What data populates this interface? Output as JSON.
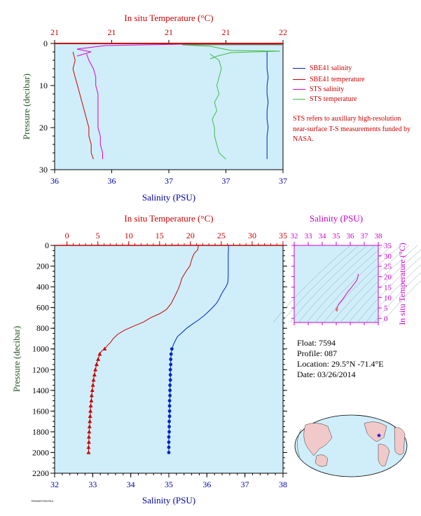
{
  "chart_data": [
    {
      "type": "line",
      "panel": "near-surface",
      "top_axis_label": "In situ Temperature (°C)",
      "top_tick_labels": [
        "21",
        "21",
        "21",
        "21",
        "22"
      ],
      "bottom_axis_label": "Salinity (PSU)",
      "bottom_tick_labels": [
        "36",
        "36",
        "37",
        "37",
        "37"
      ],
      "ylabel": "Pressure (decibar)",
      "y_tick_labels": [
        "0",
        "10",
        "20",
        "30"
      ],
      "ylim": [
        0,
        30
      ],
      "series": [
        {
          "name": "SBE41 salinity",
          "color": "#0022cc",
          "points": [
            [
              36.93,
              2
            ],
            [
              36.93,
              4
            ],
            [
              36.93,
              6
            ],
            [
              36.935,
              8
            ],
            [
              36.93,
              10
            ],
            [
              36.93,
              12
            ],
            [
              36.935,
              14
            ],
            [
              36.93,
              16
            ],
            [
              36.93,
              18
            ],
            [
              36.935,
              20
            ],
            [
              36.93,
              22
            ],
            [
              36.93,
              24
            ],
            [
              36.93,
              26
            ],
            [
              36.93,
              27.5
            ]
          ]
        },
        {
          "name": "SBE41 temperature",
          "color": "#cc0000",
          "points": [
            [
              36.08,
              2
            ],
            [
              36.09,
              4
            ],
            [
              36.08,
              6
            ],
            [
              36.09,
              8
            ],
            [
              36.1,
              10
            ],
            [
              36.11,
              12
            ],
            [
              36.12,
              14
            ],
            [
              36.13,
              16
            ],
            [
              36.14,
              18
            ],
            [
              36.15,
              20
            ],
            [
              36.15,
              22
            ],
            [
              36.16,
              24
            ],
            [
              36.16,
              26
            ],
            [
              36.17,
              27.5
            ]
          ]
        },
        {
          "name": "STS salinity",
          "color": "#dd00cc",
          "points": [
            [
              36.14,
              2.5
            ],
            [
              36.15,
              4
            ],
            [
              36.17,
              6
            ],
            [
              36.18,
              8
            ],
            [
              36.18,
              10
            ],
            [
              36.19,
              12
            ],
            [
              36.19,
              14
            ],
            [
              36.19,
              16
            ],
            [
              36.19,
              18
            ],
            [
              36.19,
              20
            ],
            [
              36.2,
              22
            ],
            [
              36.2,
              24
            ],
            [
              36.21,
              26
            ],
            [
              36.21,
              27.5
            ]
          ]
        },
        {
          "name": "STS temperature",
          "color": "#44bb44",
          "points": [
            [
              36.68,
              2.5
            ],
            [
              36.72,
              4
            ],
            [
              36.73,
              6
            ],
            [
              36.72,
              8
            ],
            [
              36.71,
              10
            ],
            [
              36.72,
              12
            ],
            [
              36.7,
              14
            ],
            [
              36.71,
              16
            ],
            [
              36.69,
              18
            ],
            [
              36.7,
              20
            ],
            [
              36.7,
              22
            ],
            [
              36.71,
              24
            ],
            [
              36.72,
              26
            ],
            [
              36.75,
              27.5
            ]
          ]
        }
      ],
      "legend": {
        "placement": "right",
        "entries": [
          {
            "label": "SBE41 salinity",
            "color": "#0022cc"
          },
          {
            "label": "SBE41 temperature",
            "color": "#cc0000"
          },
          {
            "label": "STS salinity",
            "color": "#dd00cc"
          },
          {
            "label": "STS temperature",
            "color": "#44bb44"
          }
        ]
      },
      "note": "STS refers to auxiliary high-resolution near-surface T-S measurements funded by NASA."
    },
    {
      "type": "line",
      "panel": "full-profile",
      "top_axis_label": "In situ Temperature (°C)",
      "top_tick_labels": [
        "0",
        "5",
        "10",
        "15",
        "20",
        "25",
        "30",
        "35"
      ],
      "xlim_top": [
        -2,
        35
      ],
      "bottom_axis_label": "Salinity (PSU)",
      "bottom_tick_labels": [
        "32",
        "33",
        "34",
        "35",
        "36",
        "37",
        "38"
      ],
      "xlim_bottom": [
        32,
        38
      ],
      "ylabel": "Pressure (decibar)",
      "y_tick_labels": [
        "0",
        "200",
        "400",
        "600",
        "800",
        "1000",
        "1200",
        "1400",
        "1600",
        "1800",
        "2000",
        "2200"
      ],
      "ylim": [
        0,
        2200
      ],
      "series": [
        {
          "name": "temperature",
          "color": "#cc0000",
          "points": [
            [
              21.3,
              0
            ],
            [
              21.2,
              40
            ],
            [
              20.6,
              80
            ],
            [
              20.3,
              120
            ],
            [
              20.1,
              160
            ],
            [
              19.9,
              200
            ],
            [
              19.4,
              240
            ],
            [
              19.0,
              280
            ],
            [
              18.6,
              320
            ],
            [
              18.3,
              380
            ],
            [
              17.9,
              440
            ],
            [
              17.4,
              500
            ],
            [
              16.9,
              560
            ],
            [
              16.1,
              620
            ],
            [
              15.0,
              660
            ],
            [
              13.5,
              700
            ],
            [
              12.4,
              740
            ],
            [
              10.8,
              780
            ],
            [
              9.3,
              820
            ],
            [
              8.2,
              860
            ],
            [
              7.5,
              900
            ],
            [
              7.0,
              940
            ],
            [
              6.5,
              970
            ],
            [
              6.1,
              1000
            ],
            [
              5.6,
              1020
            ],
            [
              5.3,
              1050
            ],
            [
              5.05,
              1100
            ],
            [
              4.8,
              1150
            ],
            [
              4.6,
              1200
            ],
            [
              4.45,
              1250
            ],
            [
              4.3,
              1300
            ],
            [
              4.2,
              1350
            ],
            [
              4.1,
              1400
            ],
            [
              4.0,
              1450
            ],
            [
              3.95,
              1500
            ],
            [
              3.85,
              1550
            ],
            [
              3.8,
              1600
            ],
            [
              3.75,
              1650
            ],
            [
              3.7,
              1700
            ],
            [
              3.65,
              1750
            ],
            [
              3.6,
              1800
            ],
            [
              3.55,
              1850
            ],
            [
              3.55,
              1900
            ],
            [
              3.5,
              1950
            ],
            [
              3.5,
              2000
            ]
          ]
        },
        {
          "name": "salinity",
          "color": "#0022cc",
          "points": [
            [
              36.57,
              0
            ],
            [
              36.56,
              100
            ],
            [
              36.56,
              200
            ],
            [
              36.56,
              300
            ],
            [
              36.55,
              360
            ],
            [
              36.5,
              400
            ],
            [
              36.43,
              440
            ],
            [
              36.37,
              480
            ],
            [
              36.32,
              520
            ],
            [
              36.25,
              560
            ],
            [
              36.15,
              600
            ],
            [
              36.04,
              640
            ],
            [
              35.92,
              680
            ],
            [
              35.78,
              720
            ],
            [
              35.62,
              760
            ],
            [
              35.47,
              800
            ],
            [
              35.35,
              840
            ],
            [
              35.23,
              880
            ],
            [
              35.17,
              920
            ],
            [
              35.12,
              960
            ],
            [
              35.08,
              1000
            ],
            [
              35.06,
              1050
            ],
            [
              35.05,
              1100
            ],
            [
              35.05,
              1150
            ],
            [
              35.04,
              1200
            ],
            [
              35.04,
              1250
            ],
            [
              35.04,
              1300
            ],
            [
              35.03,
              1350
            ],
            [
              35.03,
              1400
            ],
            [
              35.03,
              1450
            ],
            [
              35.02,
              1500
            ],
            [
              35.02,
              1550
            ],
            [
              35.02,
              1600
            ],
            [
              35.02,
              1650
            ],
            [
              35.01,
              1700
            ],
            [
              35.01,
              1750
            ],
            [
              35.01,
              1800
            ],
            [
              35.0,
              1850
            ],
            [
              35.0,
              1900
            ],
            [
              35.0,
              1950
            ],
            [
              35.0,
              2000
            ]
          ]
        }
      ],
      "marker_start_pressure": 1000
    },
    {
      "type": "scatter",
      "panel": "T-S diagram",
      "xlabel": "Salinity (PSU)",
      "x_tick_labels": [
        "32",
        "33",
        "34",
        "35",
        "36",
        "37",
        "38"
      ],
      "xlim": [
        32,
        38
      ],
      "ylabel": "In situ Temperature (°C)",
      "y_tick_labels": [
        "0",
        "5",
        "10",
        "15",
        "20",
        "25",
        "30",
        "35"
      ],
      "ylim": [
        -2,
        35
      ],
      "series": [
        {
          "name": "profile",
          "color": "#dd00cc",
          "points": [
            [
              36.57,
              21.3
            ],
            [
              36.55,
              20.0
            ],
            [
              36.5,
              18.8
            ],
            [
              36.4,
              17.5
            ],
            [
              36.25,
              16.3
            ],
            [
              36.05,
              14.5
            ],
            [
              35.8,
              12.5
            ],
            [
              35.5,
              9.5
            ],
            [
              35.3,
              7.8
            ],
            [
              35.15,
              6.5
            ],
            [
              35.08,
              5.5
            ],
            [
              35.05,
              4.6
            ],
            [
              35.03,
              4.0
            ],
            [
              35.0,
              3.5
            ]
          ]
        },
        {
          "name": "deep",
          "color": "#ee6666",
          "points": [
            [
              35.06,
              5.0
            ],
            [
              35.04,
              4.5
            ],
            [
              35.03,
              4.1
            ],
            [
              35.02,
              3.8
            ],
            [
              35.01,
              3.6
            ],
            [
              35.0,
              3.5
            ]
          ]
        }
      ],
      "contours": true
    }
  ],
  "float_info": {
    "float": "Float:  7594",
    "profile": "Profile:  087",
    "location": "Location:  29.5°N  -71.4°E",
    "date": "Date:  03/26/2014"
  },
  "footer_code": "7594/087/03/2014"
}
